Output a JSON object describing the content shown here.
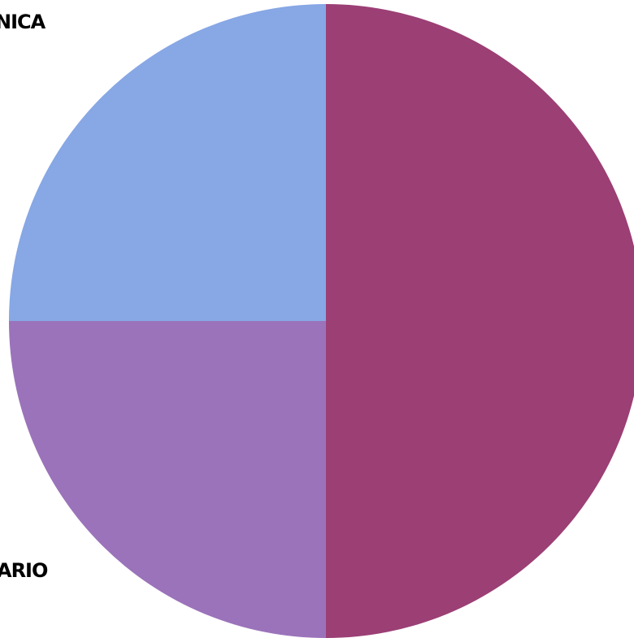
{
  "chart_data": {
    "type": "pie",
    "slices": [
      {
        "label": "",
        "value": 50,
        "color": "#9b3f75"
      },
      {
        "label": "ARIO",
        "value": 25,
        "color": "#9b73ba"
      },
      {
        "label": "NICA",
        "value": 25,
        "color": "#87a7e5"
      }
    ],
    "start_angle_deg": 0,
    "direction": "clockwise",
    "legend": "none"
  }
}
